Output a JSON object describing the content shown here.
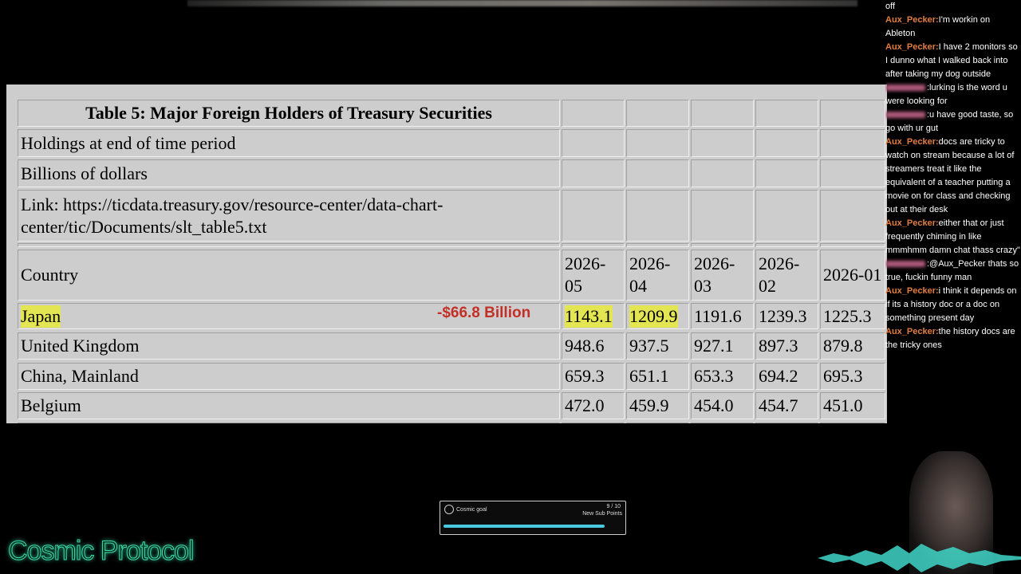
{
  "table": {
    "title": "Table 5: Major Foreign Holders of Treasury Securities",
    "notes": [
      "Holdings at end of time period",
      "Billions of dollars",
      "Link: https://ticdata.treasury.gov/resource-center/data-chart-center/tic/Documents/slt_table5.txt"
    ],
    "header": [
      "Country",
      "2026-05",
      "2026-04",
      "2026-03",
      "2026-02",
      "2026-01"
    ],
    "rows": [
      [
        "Japan",
        "1143.1",
        "1209.9",
        "1191.6",
        "1239.3",
        "1225.3"
      ],
      [
        "United Kingdom",
        "948.6",
        "937.5",
        "927.1",
        "897.3",
        "879.8"
      ],
      [
        "China, Mainland",
        "659.3",
        "651.1",
        "653.3",
        "694.2",
        "695.3"
      ],
      [
        "Belgium",
        "472.0",
        "459.9",
        "454.0",
        "454.7",
        "451.0"
      ]
    ]
  },
  "annotation": "-$66.8 Billion",
  "chat": [
    {
      "text": "off"
    },
    {
      "user": "Aux_Pecker:",
      "text": "I'm workin on Ableton"
    },
    {
      "user": "Aux_Pecker:",
      "text": "I have 2 monitors so I dunno what I walked back into after taking my dog outside"
    },
    {
      "text": ":lurking is the word u were looking for"
    },
    {
      "text": ":u have good taste, so go with ur gut"
    },
    {
      "user": "Aux_Pecker:",
      "text": "docs are tricky to watch on stream because a lot of streamers treat it like the equivalent of a teacher putting a movie on for class and checking out at their desk"
    },
    {
      "user": "Aux_Pecker:",
      "text": "either that or just frequently chiming in like mmmhmm damn chat thass crazy\""
    },
    {
      "text": ":@Aux_Pecker thats so true, fuckin funny man"
    },
    {
      "user": "Aux_Pecker:",
      "text": "i think it depends on if its a history doc or a doc on something present day"
    },
    {
      "user": "Aux_Pecker:",
      "text": "the history docs are the tricky ones"
    }
  ],
  "goal": {
    "title": "Cosmic goal",
    "progress": "9 / 10",
    "label": "New Sub Points"
  },
  "logo": "Cosmic Protocol"
}
